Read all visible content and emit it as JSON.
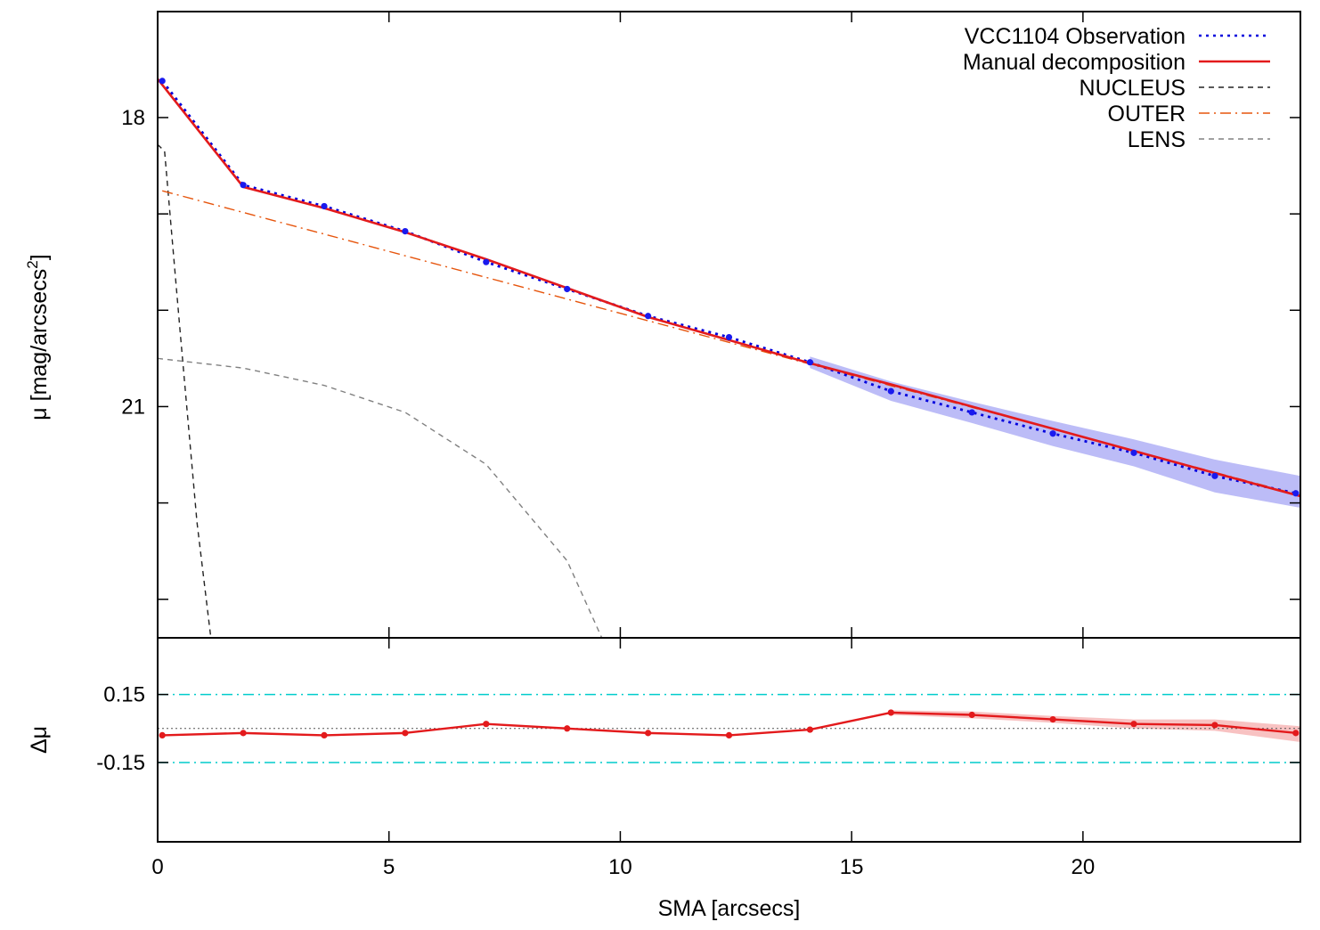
{
  "chart_data": [
    {
      "type": "line",
      "panel": "main",
      "ylabel": "μ [mag/arcsecs²]",
      "ylabel_main": "μ [mag/arcsecs",
      "ylabel_sup": "2",
      "ylabel_close": "]",
      "xlim": [
        0,
        24.7
      ],
      "ylim": [
        16.9,
        23.4
      ],
      "y_inverted": true,
      "y_tick_labels": [
        "18",
        "21"
      ],
      "y_ticks_major": [
        18,
        21
      ],
      "y_ticks_minor": [
        19,
        20,
        22,
        23
      ],
      "grid": false,
      "legend_position": "top-right",
      "legend": [
        {
          "label": "VCC1104 Observation",
          "color": "#0000dd",
          "style": "dotted"
        },
        {
          "label": "Manual decomposition",
          "color": "#e31a1c",
          "style": "solid"
        },
        {
          "label": "NUCLEUS",
          "color": "#222222",
          "style": "dashed"
        },
        {
          "label": "OUTER",
          "color": "#e6550d",
          "style": "dash-dot"
        },
        {
          "label": "LENS",
          "color": "#808080",
          "style": "dashed"
        }
      ],
      "series": [
        {
          "name": "VCC1104 Observation",
          "x": [
            0.1,
            1.85,
            3.6,
            5.35,
            7.1,
            8.85,
            10.6,
            12.35,
            14.1,
            15.85,
            17.6,
            19.35,
            21.1,
            22.85,
            24.6
          ],
          "y": [
            17.62,
            18.7,
            18.92,
            19.18,
            19.5,
            19.78,
            20.06,
            20.28,
            20.54,
            20.84,
            21.06,
            21.28,
            21.48,
            21.72,
            21.9
          ]
        },
        {
          "name": "Observation uncertainty",
          "x": [
            14.1,
            15.85,
            17.6,
            19.35,
            21.1,
            22.85,
            24.7
          ],
          "y_low": [
            20.48,
            20.74,
            20.95,
            21.15,
            21.34,
            21.55,
            21.72
          ],
          "y_high": [
            20.6,
            20.94,
            21.17,
            21.41,
            21.62,
            21.89,
            22.05
          ]
        },
        {
          "name": "Manual decomposition",
          "x": [
            0.0,
            1.85,
            3.6,
            5.35,
            7.1,
            8.85,
            10.6,
            12.35,
            14.1,
            15.85,
            17.6,
            19.35,
            21.1,
            22.85,
            24.7
          ],
          "y": [
            17.6,
            18.72,
            18.94,
            19.19,
            19.47,
            19.77,
            20.07,
            20.31,
            20.55,
            20.77,
            21.0,
            21.23,
            21.46,
            21.69,
            21.93
          ]
        },
        {
          "name": "NUCLEUS",
          "x": [
            0.0,
            0.15,
            0.5,
            0.85,
            1.15
          ],
          "y": [
            18.28,
            18.35,
            20.3,
            22.2,
            23.4
          ]
        },
        {
          "name": "OUTER",
          "x": [
            0.1,
            24.7
          ],
          "y": [
            18.76,
            21.92
          ]
        },
        {
          "name": "LENS",
          "x": [
            0.0,
            1.85,
            3.6,
            5.35,
            7.1,
            8.85,
            9.6
          ],
          "y": [
            20.5,
            20.6,
            20.78,
            21.06,
            21.6,
            22.6,
            23.4
          ]
        }
      ]
    },
    {
      "type": "line",
      "panel": "residual",
      "xlabel": "SMA [arcsecs]",
      "ylabel": "Δμ",
      "xlim": [
        0,
        24.7
      ],
      "ylim": [
        -0.5,
        0.4
      ],
      "x_ticks": [
        0,
        5,
        10,
        15,
        20
      ],
      "x_tick_labels": [
        "0",
        "5",
        "10",
        "15",
        "20"
      ],
      "y_tick_labels": [
        "0.15",
        "-0.15"
      ],
      "y_ticks": [
        0.15,
        -0.15
      ],
      "reference_lines": [
        {
          "name": "upper limit",
          "y": 0.15,
          "color": "#00cccc",
          "style": "dash-dot"
        },
        {
          "name": "lower limit",
          "y": -0.15,
          "color": "#00cccc",
          "style": "dash-dot"
        },
        {
          "name": "zero",
          "y": 0.0,
          "color": "#555555",
          "style": "dotted"
        }
      ],
      "series": [
        {
          "name": "Residual",
          "x": [
            0.1,
            1.85,
            3.6,
            5.35,
            7.1,
            8.85,
            10.6,
            12.35,
            14.1,
            15.85,
            17.6,
            19.35,
            21.1,
            22.85,
            24.6
          ],
          "y": [
            -0.03,
            -0.02,
            -0.03,
            -0.02,
            0.02,
            0.0,
            -0.02,
            -0.03,
            -0.005,
            0.07,
            0.06,
            0.04,
            0.02,
            0.015,
            -0.02
          ]
        },
        {
          "name": "Residual uncertainty",
          "x": [
            15.85,
            17.6,
            19.35,
            21.1,
            22.85,
            24.7
          ],
          "y_low": [
            0.06,
            0.045,
            0.025,
            0.0,
            -0.01,
            -0.06
          ],
          "y_high": [
            0.08,
            0.075,
            0.055,
            0.04,
            0.04,
            0.01
          ]
        }
      ]
    }
  ]
}
